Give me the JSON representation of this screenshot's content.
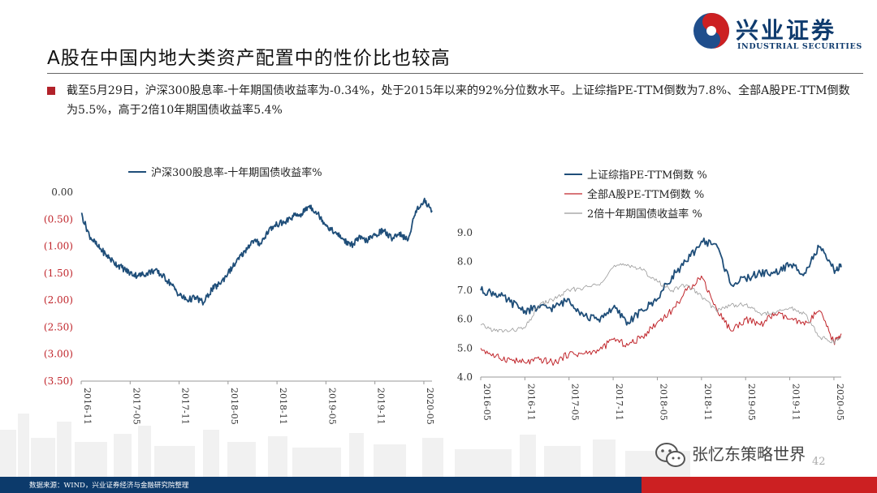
{
  "header": {
    "title": "A股在中国内地大类资产配置中的性价比也较高",
    "logo_cn": "兴业证券",
    "logo_en": "INDUSTRIAL SECURITIES"
  },
  "summary": {
    "text": "截至5月29日，沪深300股息率-十年期国债收益率为-0.34%，处于2015年以来的92%分位数水平。上证综指PE-TTM倒数为7.8%、全部A股PE-TTM倒数为5.5%，高于2倍10年期国债收益率5.4%"
  },
  "footer": {
    "source": "数据来源：WIND，兴业证券经济与金融研究院整理",
    "watermark": "张忆东策略世界",
    "page_number": "42"
  },
  "colors": {
    "navy": "#1f4e79",
    "red": "#c0252b",
    "gray": "#9a9a9a",
    "brand_blue": "#0f3b6e",
    "brand_red": "#cc2022"
  },
  "chart_data": [
    {
      "type": "line",
      "legend_position": "top",
      "y_tick_labels": [
        "0.00",
        "(0.50)",
        "(1.00)",
        "(1.50)",
        "(2.00)",
        "(2.50)",
        "(3.00)",
        "(3.50)"
      ],
      "x_tick_labels": [
        "2016-11",
        "2017-05",
        "2017-11",
        "2018-05",
        "2018-11",
        "2019-05",
        "2019-11",
        "2020-05"
      ],
      "ylim": [
        -3.5,
        0
      ],
      "x_range": [
        "2016-11",
        "2020-06"
      ],
      "grid": false,
      "series": [
        {
          "name": "沪深300股息率-十年期国债收益率%",
          "color": "#1f4e79",
          "x": [
            "2016-11",
            "2016-12",
            "2017-01",
            "2017-02",
            "2017-03",
            "2017-04",
            "2017-05",
            "2017-06",
            "2017-07",
            "2017-08",
            "2017-09",
            "2017-10",
            "2017-11",
            "2017-12",
            "2018-01",
            "2018-02",
            "2018-03",
            "2018-04",
            "2018-05",
            "2018-06",
            "2018-07",
            "2018-08",
            "2018-09",
            "2018-10",
            "2018-11",
            "2018-12",
            "2019-01",
            "2019-02",
            "2019-03",
            "2019-04",
            "2019-05",
            "2019-06",
            "2019-07",
            "2019-08",
            "2019-09",
            "2019-10",
            "2019-11",
            "2019-12",
            "2020-01",
            "2020-02",
            "2020-03",
            "2020-04",
            "2020-05",
            "2020-06"
          ],
          "values": [
            -0.4,
            -0.8,
            -1.0,
            -1.15,
            -1.3,
            -1.4,
            -1.5,
            -1.55,
            -1.5,
            -1.45,
            -1.55,
            -1.7,
            -1.9,
            -2.0,
            -1.95,
            -2.05,
            -1.8,
            -1.7,
            -1.5,
            -1.3,
            -1.1,
            -0.9,
            -0.95,
            -0.7,
            -0.6,
            -0.55,
            -0.45,
            -0.4,
            -0.25,
            -0.4,
            -0.6,
            -0.75,
            -0.85,
            -1.0,
            -0.85,
            -0.9,
            -0.8,
            -0.7,
            -0.85,
            -0.75,
            -0.9,
            -0.35,
            -0.15,
            -0.34
          ]
        }
      ]
    },
    {
      "type": "line",
      "legend_position": "top-right",
      "y_tick_labels": [
        "4.0",
        "5.0",
        "6.0",
        "7.0",
        "8.0",
        "9.0"
      ],
      "x_tick_labels": [
        "2016-05",
        "2016-11",
        "2017-05",
        "2017-11",
        "2018-05",
        "2018-11",
        "2019-05",
        "2019-11",
        "2020-05"
      ],
      "ylim": [
        4.0,
        9.5
      ],
      "x_range": [
        "2016-05",
        "2020-06"
      ],
      "grid": false,
      "series": [
        {
          "name": "上证综指PE-TTM倒数 %",
          "color": "#1f4e79",
          "x": [
            "2016-05",
            "2016-07",
            "2016-09",
            "2016-11",
            "2017-01",
            "2017-03",
            "2017-05",
            "2017-07",
            "2017-09",
            "2017-11",
            "2018-01",
            "2018-03",
            "2018-05",
            "2018-07",
            "2018-09",
            "2018-11",
            "2019-01",
            "2019-03",
            "2019-05",
            "2019-07",
            "2019-09",
            "2019-11",
            "2020-01",
            "2020-03",
            "2020-05",
            "2020-06"
          ],
          "values": [
            7.0,
            6.9,
            6.6,
            6.3,
            6.4,
            6.4,
            6.7,
            6.1,
            6.0,
            6.4,
            5.9,
            6.3,
            6.7,
            7.5,
            8.0,
            8.7,
            8.6,
            7.2,
            7.4,
            7.6,
            7.6,
            7.9,
            7.6,
            8.5,
            7.7,
            7.8
          ]
        },
        {
          "name": "全部A股PE-TTM倒数 %",
          "color": "#c0252b",
          "x": [
            "2016-05",
            "2016-07",
            "2016-09",
            "2016-11",
            "2017-01",
            "2017-03",
            "2017-05",
            "2017-07",
            "2017-09",
            "2017-11",
            "2018-01",
            "2018-03",
            "2018-05",
            "2018-07",
            "2018-09",
            "2018-11",
            "2019-01",
            "2019-03",
            "2019-05",
            "2019-07",
            "2019-09",
            "2019-11",
            "2020-01",
            "2020-03",
            "2020-05",
            "2020-06"
          ],
          "values": [
            5.0,
            4.7,
            4.6,
            4.5,
            4.6,
            4.5,
            4.8,
            4.8,
            4.9,
            5.3,
            5.1,
            5.4,
            5.9,
            6.3,
            7.0,
            7.5,
            6.4,
            5.6,
            6.0,
            5.8,
            6.2,
            6.0,
            5.8,
            6.3,
            5.2,
            5.5
          ]
        },
        {
          "name": "2倍十年期国债收益率 %",
          "color": "#9a9a9a",
          "x": [
            "2016-05",
            "2016-07",
            "2016-09",
            "2016-11",
            "2017-01",
            "2017-03",
            "2017-05",
            "2017-07",
            "2017-09",
            "2017-11",
            "2018-01",
            "2018-03",
            "2018-05",
            "2018-07",
            "2018-09",
            "2018-11",
            "2019-01",
            "2019-03",
            "2019-05",
            "2019-07",
            "2019-09",
            "2019-11",
            "2020-01",
            "2020-03",
            "2020-05",
            "2020-06"
          ],
          "values": [
            5.8,
            5.6,
            5.6,
            5.7,
            6.5,
            6.7,
            7.0,
            7.1,
            7.2,
            7.8,
            7.9,
            7.7,
            7.3,
            7.0,
            7.2,
            6.8,
            6.3,
            6.5,
            6.5,
            6.2,
            6.2,
            6.4,
            6.2,
            5.4,
            5.2,
            5.4
          ]
        }
      ]
    }
  ]
}
